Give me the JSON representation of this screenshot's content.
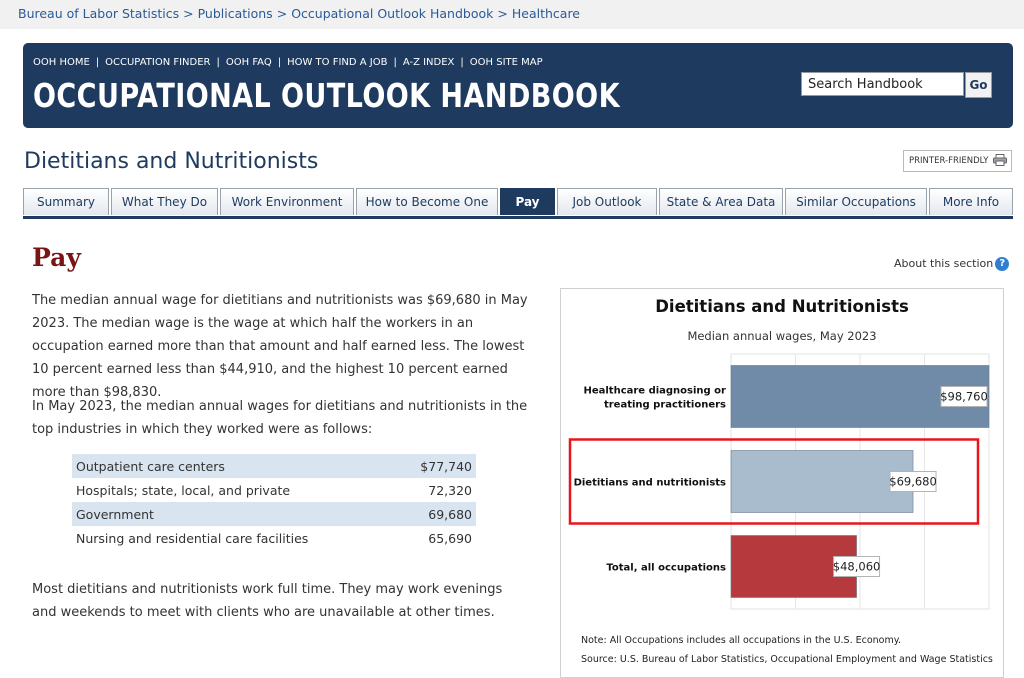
{
  "breadcrumb": {
    "items": [
      "Bureau of Labor Statistics",
      "Publications",
      "Occupational Outlook Handbook",
      "Healthcare"
    ],
    "separator": ">"
  },
  "banner": {
    "nav": [
      "OOH HOME",
      "OCCUPATION FINDER",
      "OOH FAQ",
      "HOW TO FIND A JOB",
      "A-Z INDEX",
      "OOH SITE MAP"
    ],
    "title": "OCCUPATIONAL OUTLOOK HANDBOOK",
    "search_value": "Search Handbook",
    "go_label": "Go",
    "background_color": "#1e3a5f"
  },
  "page": {
    "title": "Dietitians and Nutritionists",
    "printer_label": "PRINTER-FRIENDLY",
    "printer_icon": "printer-icon"
  },
  "tabs": {
    "items": [
      "Summary",
      "What They Do",
      "Work Environment",
      "How to Become One",
      "Pay",
      "Job Outlook",
      "State & Area Data",
      "Similar Occupations",
      "More Info"
    ],
    "active": "Pay"
  },
  "section": {
    "heading": "Pay",
    "about_label": "About this section",
    "about_icon": "help-icon",
    "para1": "The median annual wage for dietitians and nutritionists was $69,680 in May 2023. The median wage is the wage at which half the workers in an occupation earned more than that amount and half earned less. The lowest 10 percent earned less than $44,910, and the highest 10 percent earned more than $98,830.",
    "para2": "In May 2023, the median annual wages for dietitians and nutritionists in the top industries in which they worked were as follows:",
    "para3": "Most dietitians and nutritionists work full time. They may work evenings and weekends to meet with clients who are unavailable at other times."
  },
  "industry_wages": [
    {
      "industry": "Outpatient care centers",
      "wage": "$77,740"
    },
    {
      "industry": "Hospitals; state, local, and private",
      "wage": "72,320"
    },
    {
      "industry": "Government",
      "wage": "69,680"
    },
    {
      "industry": "Nursing and residential care facilities",
      "wage": "65,690"
    }
  ],
  "chart_data": {
    "type": "bar",
    "orientation": "horizontal",
    "title": "Dietitians and Nutritionists",
    "subtitle": "Median annual wages, May 2023",
    "categories": [
      "Healthcare diagnosing or treating practitioners",
      "Dietitians and nutritionists",
      "Total, all occupations"
    ],
    "category_lines": [
      [
        "Healthcare diagnosing or",
        "treating practitioners"
      ],
      [
        "Dietitians and nutritionists"
      ],
      [
        "Total, all occupations"
      ]
    ],
    "values": [
      98760,
      69680,
      48060
    ],
    "value_labels": [
      "$98,760",
      "$69,680",
      "$48,060"
    ],
    "colors": [
      "#6f8ba8",
      "#a9bccd",
      "#b5393d"
    ],
    "highlighted": "Dietitians and nutritionists",
    "highlight_color": "#e8161b",
    "xlim": [
      0,
      98760
    ],
    "grid": true,
    "legend": "none",
    "note": "Note: All Occupations includes all occupations in the U.S. Economy.",
    "source": "Source: U.S. Bureau of Labor Statistics, Occupational Employment and Wage Statistics"
  }
}
